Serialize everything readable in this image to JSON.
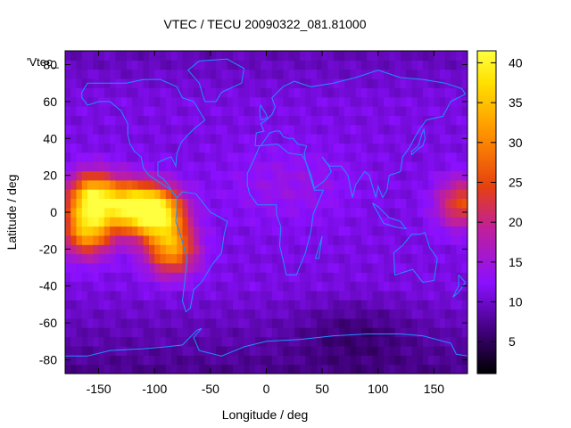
{
  "chart_data": {
    "type": "heatmap",
    "title": "VTEC / TECU 20090322_081.81000",
    "xlabel": "Longitude / deg",
    "ylabel": "Latitude / deg",
    "legend_label": "'Vtec_",
    "xlim": [
      -180,
      180
    ],
    "ylim": [
      -87.5,
      87.5
    ],
    "x_ticks": [
      -150,
      -100,
      -50,
      0,
      50,
      100,
      150
    ],
    "y_ticks": [
      -80,
      -60,
      -40,
      -20,
      0,
      20,
      40,
      60,
      80
    ],
    "colorbar": {
      "range": [
        1,
        41.5
      ],
      "ticks": [
        5,
        10,
        15,
        20,
        25,
        30,
        35,
        40
      ],
      "colormap": [
        "#000000",
        "#3a0070",
        "#8a10ff",
        "#c0209a",
        "#e64010",
        "#ff9000",
        "#ffe000",
        "#ffff40"
      ]
    },
    "grid": false,
    "coastline_color": "#1e90ff",
    "hotspots": [
      {
        "lon": -155,
        "lat": 8,
        "value": 38
      },
      {
        "lon": -120,
        "lat": 3,
        "value": 36
      },
      {
        "lon": -95,
        "lat": 0,
        "value": 37
      },
      {
        "lon": -160,
        "lat": -10,
        "value": 32
      },
      {
        "lon": -85,
        "lat": -20,
        "value": 31
      },
      {
        "lon": 175,
        "lat": 5,
        "value": 25
      }
    ]
  }
}
